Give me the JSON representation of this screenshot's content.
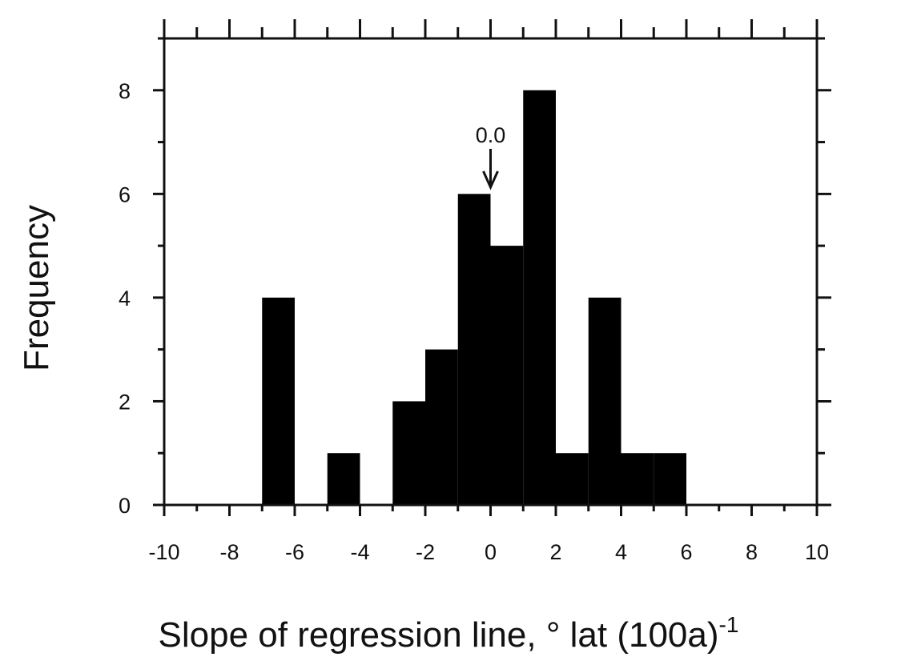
{
  "chart_data": {
    "type": "histogram",
    "x_label": "Slope of regression line, ° lat (100a)",
    "x_label_superscript": "-1",
    "y_label": "Frequency",
    "bins": [
      -10,
      -9,
      -8,
      -7,
      -6,
      -5,
      -4,
      -3,
      -2,
      -1,
      0,
      1,
      2,
      3,
      4,
      5,
      6,
      7,
      8,
      9,
      10
    ],
    "values": [
      0,
      0,
      0,
      4,
      0,
      1,
      0,
      2,
      3,
      6,
      5,
      8,
      1,
      4,
      1,
      1,
      0,
      0,
      0,
      0
    ],
    "color": "#000000",
    "xlim": [
      -10,
      10
    ],
    "ylim": [
      0,
      9
    ],
    "xticks": [
      -10,
      -8,
      -6,
      -4,
      -2,
      0,
      2,
      4,
      6,
      8,
      10
    ],
    "yticks": [
      0,
      2,
      4,
      6,
      8
    ],
    "minor_xticks": [
      -9,
      -7,
      -5,
      -3,
      -1,
      1,
      3,
      5,
      7,
      9
    ],
    "minor_yticks": [
      1,
      3,
      5,
      7,
      9
    ],
    "annotations": [
      {
        "text": "0.0",
        "x": 0
      }
    ]
  }
}
